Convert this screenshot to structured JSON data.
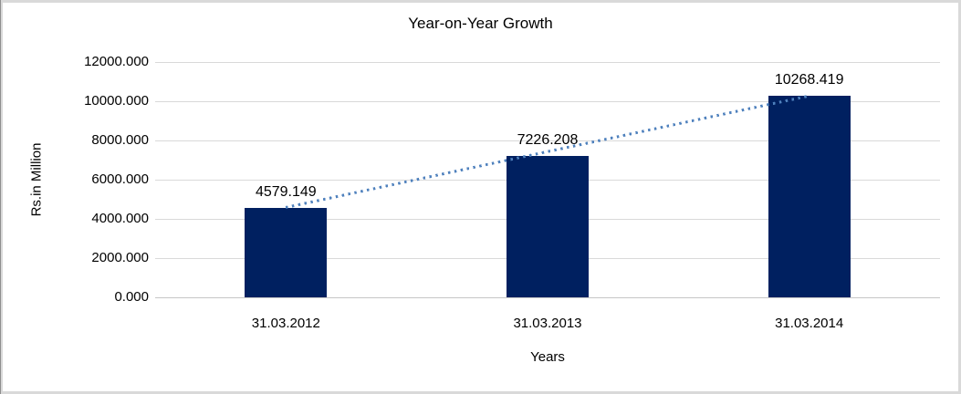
{
  "chart_data": {
    "type": "bar",
    "title": "Year-on-Year Growth",
    "xlabel": "Years",
    "ylabel": "Rs.in Million",
    "categories": [
      "31.03.2012",
      "31.03.2013",
      "31.03.2014"
    ],
    "values": [
      4579.149,
      7226.208,
      10268.419
    ],
    "data_labels": [
      "4579.149",
      "7226.208",
      "10268.419"
    ],
    "ylim": [
      0,
      12000
    ],
    "ytick_step": 2000,
    "yticks": [
      "0.000",
      "2000.000",
      "4000.000",
      "6000.000",
      "8000.000",
      "10000.000",
      "12000.000"
    ],
    "grid": true,
    "legend": "none",
    "bar_color": "#002060",
    "gridline_color": "#d9d9d9",
    "trendline": {
      "type": "linear",
      "style": "dotted",
      "color": "#4f81bd",
      "from_category": "31.03.2012",
      "to_category": "31.03.2014"
    }
  },
  "frame": {
    "outer_border_color": "#d9d9d9",
    "left_edge_color": "#8f8f8f"
  }
}
